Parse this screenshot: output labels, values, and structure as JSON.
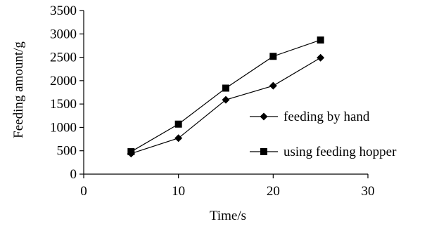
{
  "chart_data": {
    "type": "line",
    "title": "",
    "xlabel": "Time/s",
    "ylabel": "Feeding  amount/g",
    "xlim": [
      0,
      30
    ],
    "ylim": [
      0,
      3500
    ],
    "x_ticks": [
      "0",
      "10",
      "20",
      "30"
    ],
    "y_ticks": [
      "0",
      "500",
      "1000",
      "1500",
      "2000",
      "2500",
      "3000",
      "3500"
    ],
    "grid": false,
    "legend_position": "right",
    "series": [
      {
        "name": "feeding by hand",
        "marker": "diamond",
        "color": "#000000",
        "x": [
          5,
          10,
          15,
          20,
          25
        ],
        "y": [
          440,
          770,
          1590,
          1890,
          2490
        ]
      },
      {
        "name": "using feeding hopper",
        "marker": "square",
        "color": "#000000",
        "x": [
          5,
          10,
          15,
          20,
          25
        ],
        "y": [
          480,
          1070,
          1840,
          2520,
          2870
        ]
      }
    ]
  }
}
